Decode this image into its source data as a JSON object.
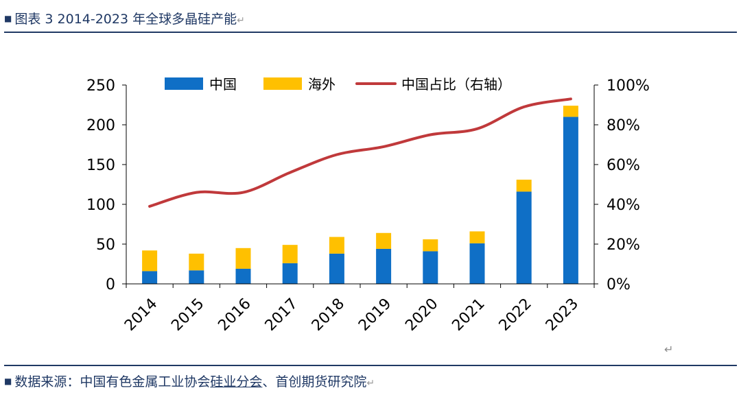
{
  "header": {
    "title": "图表 3 2014-2023 年全球多晶硅产能",
    "marker": "■",
    "return_mark": "↵"
  },
  "footer": {
    "marker": "■",
    "source_prefix": "数据来源：中国有色金属工业协会",
    "source_underlined": "硅业分会",
    "source_suffix": "、首创期货研究院",
    "return_mark": "↵"
  },
  "corner_mark": "↵",
  "colors": {
    "china": "#0f6fc6",
    "overseas": "#ffc000",
    "share_line": "#c0393b",
    "axis": "#000000",
    "header_rule": "#1f3864"
  },
  "chart_data": {
    "type": "bar",
    "stacked": true,
    "categories": [
      "2014",
      "2015",
      "2016",
      "2017",
      "2018",
      "2019",
      "2020",
      "2021",
      "2022",
      "2023"
    ],
    "series": [
      {
        "name": "中国",
        "type": "bar",
        "axis": "left",
        "values": [
          16,
          17,
          19,
          26,
          38,
          44,
          41,
          51,
          116,
          210
        ]
      },
      {
        "name": "海外",
        "type": "bar",
        "axis": "left",
        "values": [
          26,
          21,
          26,
          23,
          21,
          20,
          15,
          15,
          15,
          14
        ]
      },
      {
        "name": "中国占比（右轴）",
        "type": "line",
        "axis": "right",
        "values": [
          0.39,
          0.46,
          0.46,
          0.56,
          0.65,
          0.69,
          0.75,
          0.78,
          0.89,
          0.93
        ]
      }
    ],
    "y_left": {
      "min": 0,
      "max": 250,
      "ticks": [
        "0",
        "50",
        "100",
        "150",
        "200",
        "250"
      ]
    },
    "y_right": {
      "min": 0,
      "max": 1,
      "ticks": [
        "0%",
        "20%",
        "40%",
        "60%",
        "80%",
        "100%"
      ]
    },
    "legend_position": "top",
    "grid": false
  }
}
